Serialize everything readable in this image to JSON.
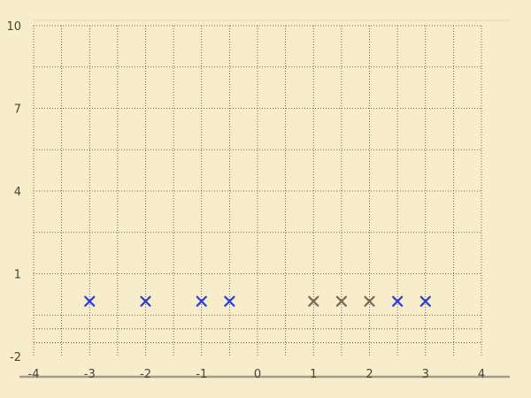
{
  "chart_data": {
    "type": "scatter",
    "title": "",
    "xlabel": "",
    "ylabel": "",
    "xlim": [
      -4,
      4
    ],
    "ylim": [
      -2,
      10
    ],
    "x_ticks": [
      -4,
      -3,
      -2,
      -1,
      0,
      1,
      2,
      3,
      4
    ],
    "y_ticks": [
      -2,
      1,
      4,
      7,
      10
    ],
    "x_gridlines": [
      -3.5,
      -3,
      -2.5,
      -2,
      -1.5,
      -1,
      -0.5,
      0,
      0.5,
      1,
      1.5,
      2,
      2.5,
      3,
      3.5,
      4
    ],
    "y_gridlines": [
      -1.5,
      -1,
      -0.5,
      1,
      2.5,
      4,
      5.5,
      7,
      8.5,
      10
    ],
    "grid": true,
    "marker": "x",
    "series": [
      {
        "color": "#2b3fd6",
        "points": [
          {
            "x": -3,
            "y": 0
          },
          {
            "x": -2,
            "y": 0
          },
          {
            "x": -1,
            "y": 0
          },
          {
            "x": -0.5,
            "y": 0
          },
          {
            "x": 2.5,
            "y": 0
          },
          {
            "x": 3,
            "y": 0
          }
        ]
      },
      {
        "color": "#7a6a55",
        "points": [
          {
            "x": 1,
            "y": 0
          },
          {
            "x": 1.5,
            "y": 0
          },
          {
            "x": 2,
            "y": 0
          }
        ]
      }
    ]
  }
}
